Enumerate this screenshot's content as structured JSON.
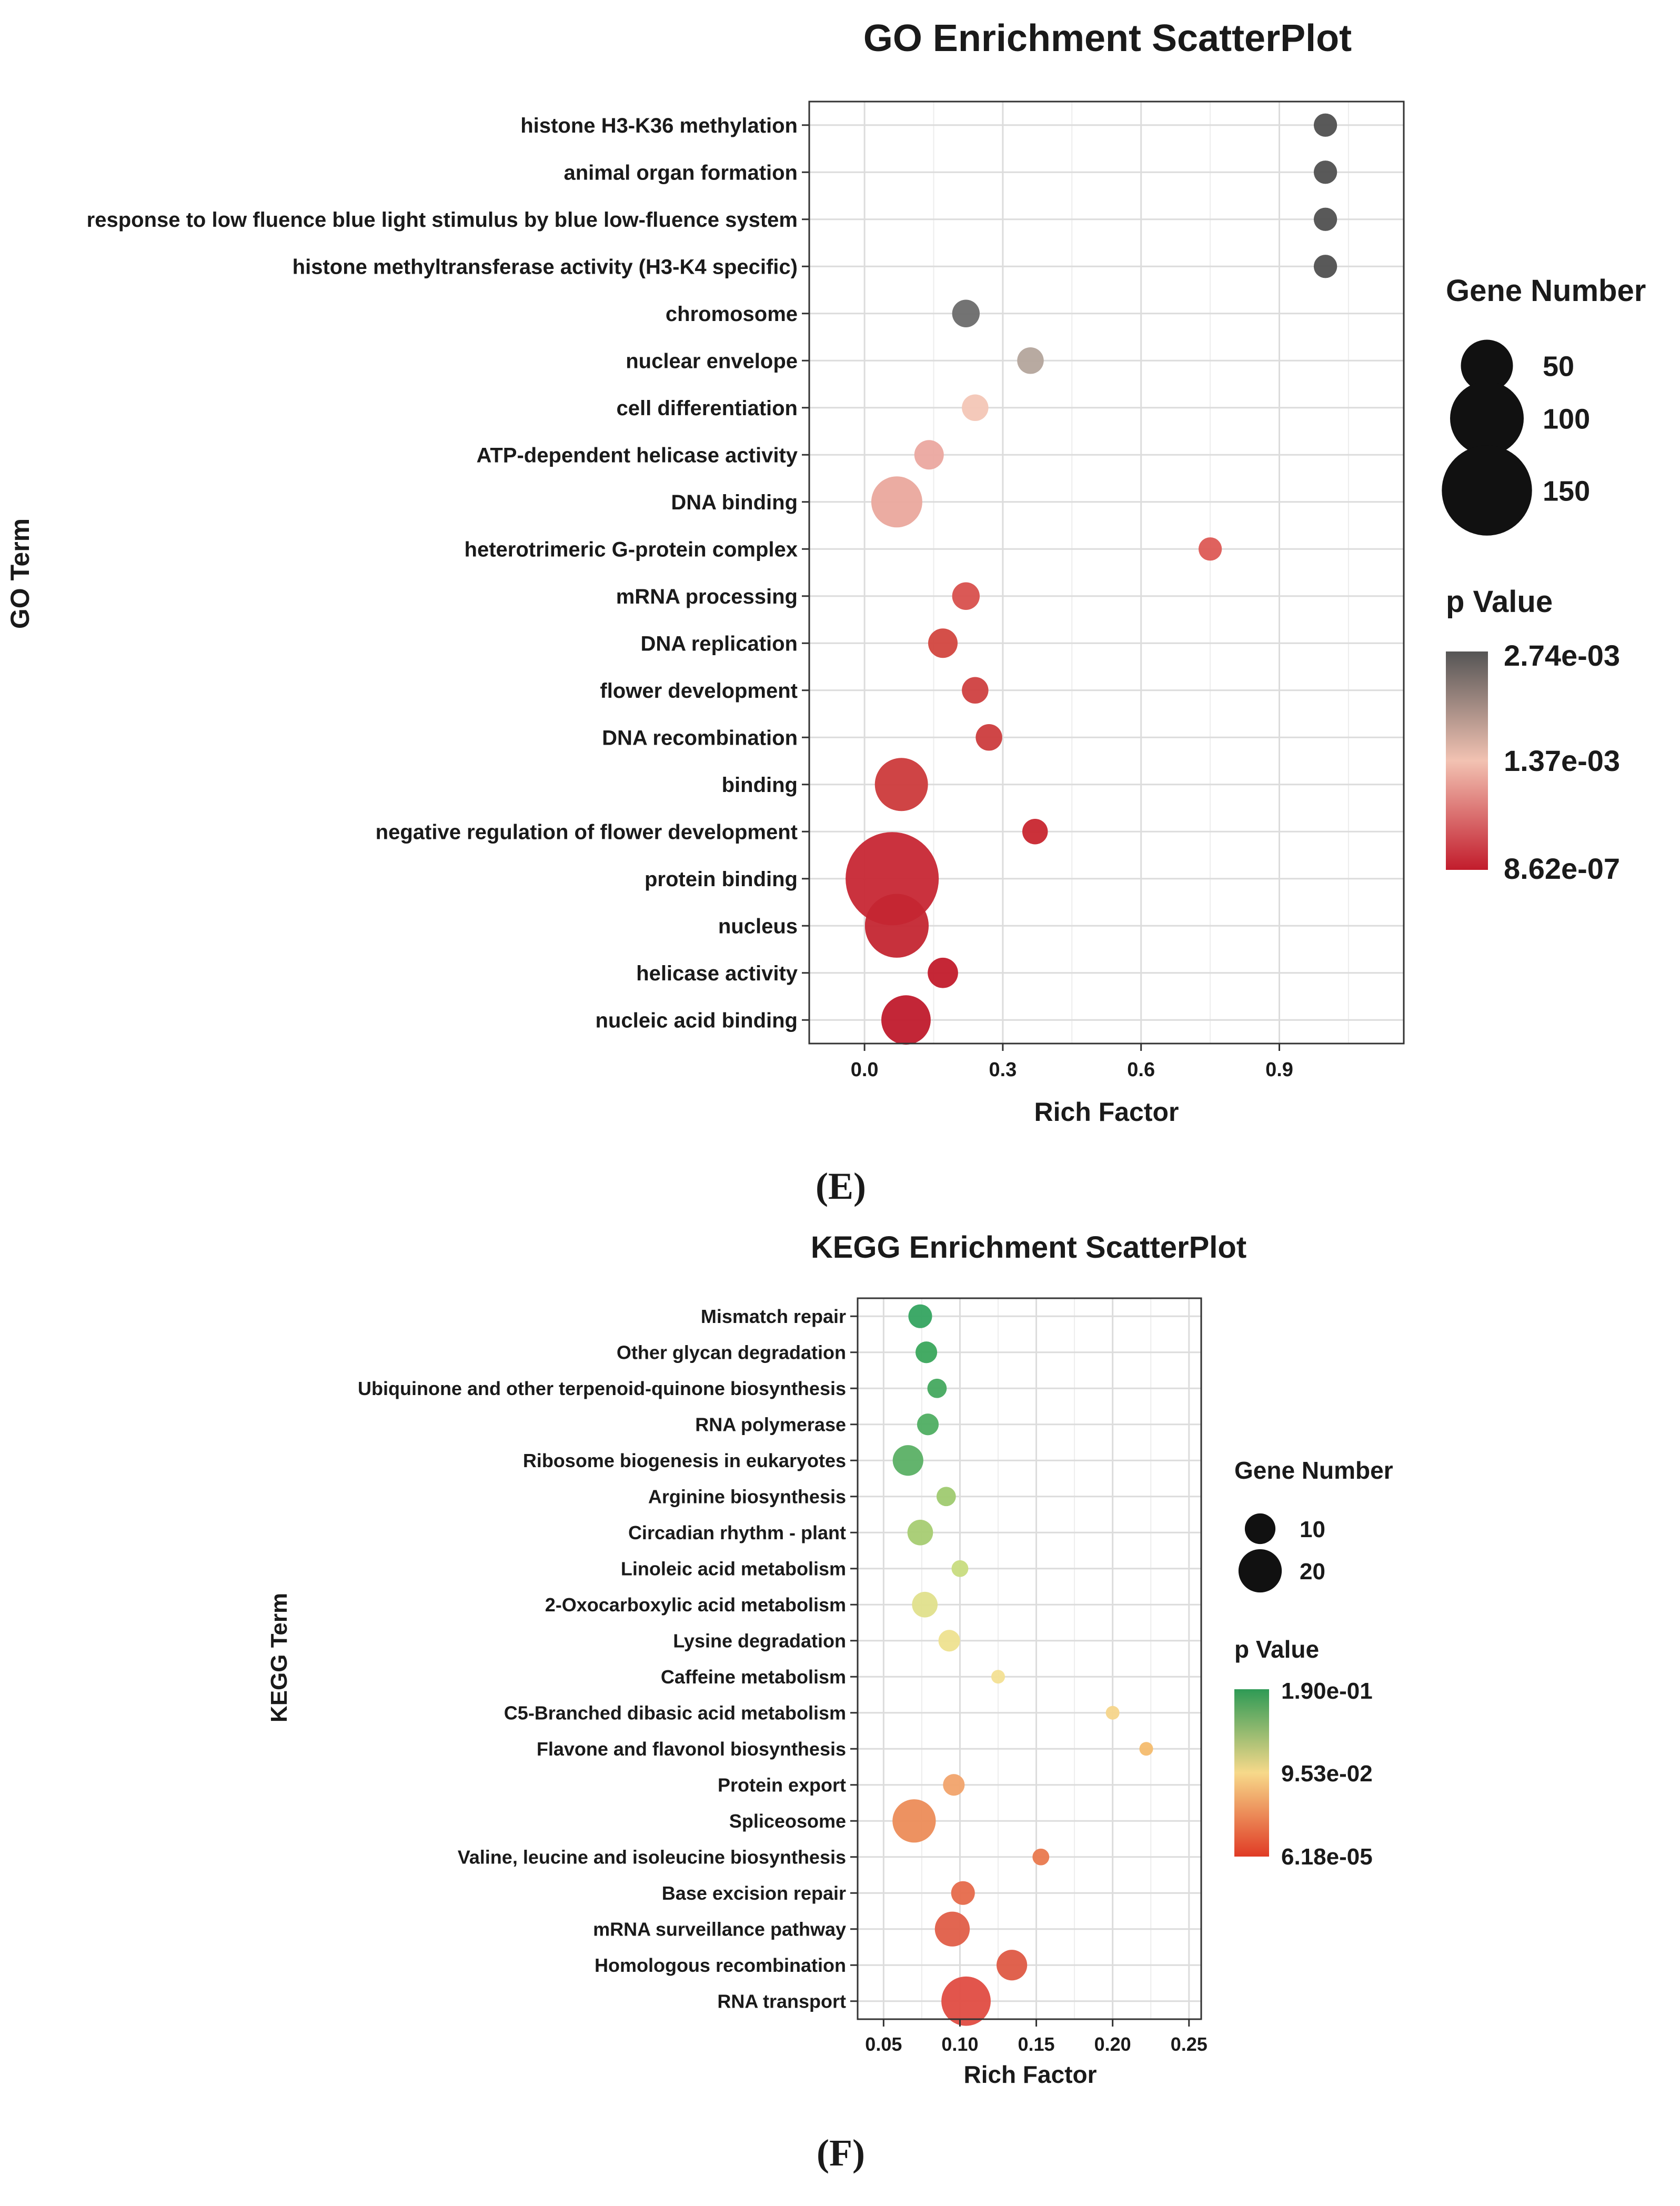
{
  "chart_data": [
    {
      "id": "go",
      "type": "scatter",
      "title": "GO Enrichment ScatterPlot",
      "xlabel": "Rich Factor",
      "ylabel": "GO Term",
      "xlim": [
        -0.12,
        1.17
      ],
      "xticks": [
        "0.0",
        "0.3",
        "0.6",
        "0.9"
      ],
      "xtick_values": [
        0.0,
        0.3,
        0.6,
        0.9
      ],
      "grid": true,
      "size_legend": {
        "title": "Gene Number",
        "entries": [
          {
            "label": "50",
            "value": 50
          },
          {
            "label": "100",
            "value": 100
          },
          {
            "label": "150",
            "value": 150
          }
        ]
      },
      "color_legend": {
        "title": "p Value",
        "labels": [
          "2.74e-03",
          "1.37e-03",
          "8.62e-07"
        ],
        "gradient": [
          "#555555",
          "#f2c2b2",
          "#c21c2c"
        ]
      },
      "points": [
        {
          "term": "histone H3-K36 methylation",
          "rich": 1.0,
          "genes": 10,
          "color": "#505050"
        },
        {
          "term": "animal organ formation",
          "rich": 1.0,
          "genes": 10,
          "color": "#505050"
        },
        {
          "term": "response to low fluence blue light stimulus by blue low-fluence system",
          "rich": 1.0,
          "genes": 10,
          "color": "#505050"
        },
        {
          "term": "histone methyltransferase activity (H3-K4 specific)",
          "rich": 1.0,
          "genes": 10,
          "color": "#505050"
        },
        {
          "term": "chromosome",
          "rich": 0.22,
          "genes": 14,
          "color": "#6b6b6b"
        },
        {
          "term": "nuclear envelope",
          "rich": 0.36,
          "genes": 13,
          "color": "#b4a59c"
        },
        {
          "term": "cell differentiation",
          "rich": 0.24,
          "genes": 13,
          "color": "#f3c6b6"
        },
        {
          "term": "ATP-dependent helicase activity",
          "rich": 0.14,
          "genes": 16,
          "color": "#eba8a0"
        },
        {
          "term": "DNA binding",
          "rich": 0.07,
          "genes": 48,
          "color": "#eaa89d"
        },
        {
          "term": "heterotrimeric G-protein complex",
          "rich": 0.75,
          "genes": 10,
          "color": "#dd5a55"
        },
        {
          "term": "mRNA processing",
          "rich": 0.22,
          "genes": 14,
          "color": "#d8504d"
        },
        {
          "term": "DNA replication",
          "rich": 0.17,
          "genes": 16,
          "color": "#d2463f"
        },
        {
          "term": "flower development",
          "rich": 0.24,
          "genes": 13,
          "color": "#cf4040"
        },
        {
          "term": "DNA recombination",
          "rich": 0.27,
          "genes": 13,
          "color": "#cc3c3d"
        },
        {
          "term": "binding",
          "rich": 0.08,
          "genes": 52,
          "color": "#cc3a3b"
        },
        {
          "term": "negative regulation of flower development",
          "rich": 0.37,
          "genes": 12,
          "color": "#c8262f"
        },
        {
          "term": "protein binding",
          "rich": 0.06,
          "genes": 160,
          "color": "#c72734"
        },
        {
          "term": "nucleus",
          "rich": 0.07,
          "genes": 75,
          "color": "#c42632"
        },
        {
          "term": "helicase activity",
          "rich": 0.17,
          "genes": 17,
          "color": "#c21b2b"
        },
        {
          "term": "nucleic acid binding",
          "rich": 0.09,
          "genes": 45,
          "color": "#c01a2c"
        }
      ]
    },
    {
      "id": "kegg",
      "type": "scatter",
      "title": "KEGG Enrichment ScatterPlot",
      "xlabel": "Rich Factor",
      "ylabel": "KEGG Term",
      "xlim": [
        0.033,
        0.258
      ],
      "xticks": [
        "0.05",
        "0.10",
        "0.15",
        "0.20",
        "0.25"
      ],
      "xtick_values": [
        0.05,
        0.1,
        0.15,
        0.2,
        0.25
      ],
      "grid": true,
      "size_legend": {
        "title": "Gene Number",
        "entries": [
          {
            "label": "10",
            "value": 10
          },
          {
            "label": "20",
            "value": 20
          }
        ]
      },
      "color_legend": {
        "title": "p Value",
        "labels": [
          "1.90e-01",
          "9.53e-02",
          "6.18e-05"
        ],
        "gradient": [
          "#2e9a55",
          "#f7d98a",
          "#e03b25"
        ]
      },
      "points": [
        {
          "term": "Mismatch repair",
          "rich": 0.074,
          "genes": 6,
          "color": "#34a460"
        },
        {
          "term": "Other glycan degradation",
          "rich": 0.078,
          "genes": 5,
          "color": "#3aa65c"
        },
        {
          "term": "Ubiquinone and other terpenoid-quinone biosynthesis",
          "rich": 0.085,
          "genes": 4,
          "color": "#45a95f"
        },
        {
          "term": "RNA polymerase",
          "rich": 0.079,
          "genes": 5,
          "color": "#4fae62"
        },
        {
          "term": "Ribosome biogenesis in eukaryotes",
          "rich": 0.066,
          "genes": 10,
          "color": "#5bb065"
        },
        {
          "term": "Arginine biosynthesis",
          "rich": 0.091,
          "genes": 4,
          "color": "#9fca70"
        },
        {
          "term": "Circadian rhythm - plant",
          "rich": 0.074,
          "genes": 7,
          "color": "#a6cc72"
        },
        {
          "term": "Linoleic acid metabolism",
          "rich": 0.1,
          "genes": 3,
          "color": "#c8dc80"
        },
        {
          "term": "2-Oxocarboxylic acid metabolism",
          "rich": 0.077,
          "genes": 7,
          "color": "#e0e08c"
        },
        {
          "term": "Lysine degradation",
          "rich": 0.093,
          "genes": 5,
          "color": "#eee28f"
        },
        {
          "term": "Caffeine metabolism",
          "rich": 0.125,
          "genes": 2,
          "color": "#f3e094"
        },
        {
          "term": "C5-Branched dibasic acid metabolism",
          "rich": 0.2,
          "genes": 2,
          "color": "#f6d58a"
        },
        {
          "term": "Flavone and flavonol biosynthesis",
          "rich": 0.222,
          "genes": 2,
          "color": "#f4bc6e"
        },
        {
          "term": "Protein export",
          "rich": 0.096,
          "genes": 5,
          "color": "#f1a36c"
        },
        {
          "term": "Spliceosome",
          "rich": 0.07,
          "genes": 20,
          "color": "#ec8c58"
        },
        {
          "term": "Valine, leucine and isoleucine biosynthesis",
          "rich": 0.153,
          "genes": 3,
          "color": "#e9794e"
        },
        {
          "term": "Base excision repair",
          "rich": 0.102,
          "genes": 6,
          "color": "#e66a4b"
        },
        {
          "term": "mRNA surveillance pathway",
          "rich": 0.095,
          "genes": 13,
          "color": "#e05e48"
        },
        {
          "term": "Homologous recombination",
          "rich": 0.134,
          "genes": 10,
          "color": "#de5a45"
        },
        {
          "term": "RNA transport",
          "rich": 0.104,
          "genes": 26,
          "color": "#e04c42"
        }
      ]
    }
  ],
  "labels": {
    "panel_e": "(E)",
    "panel_f": "(F)"
  }
}
